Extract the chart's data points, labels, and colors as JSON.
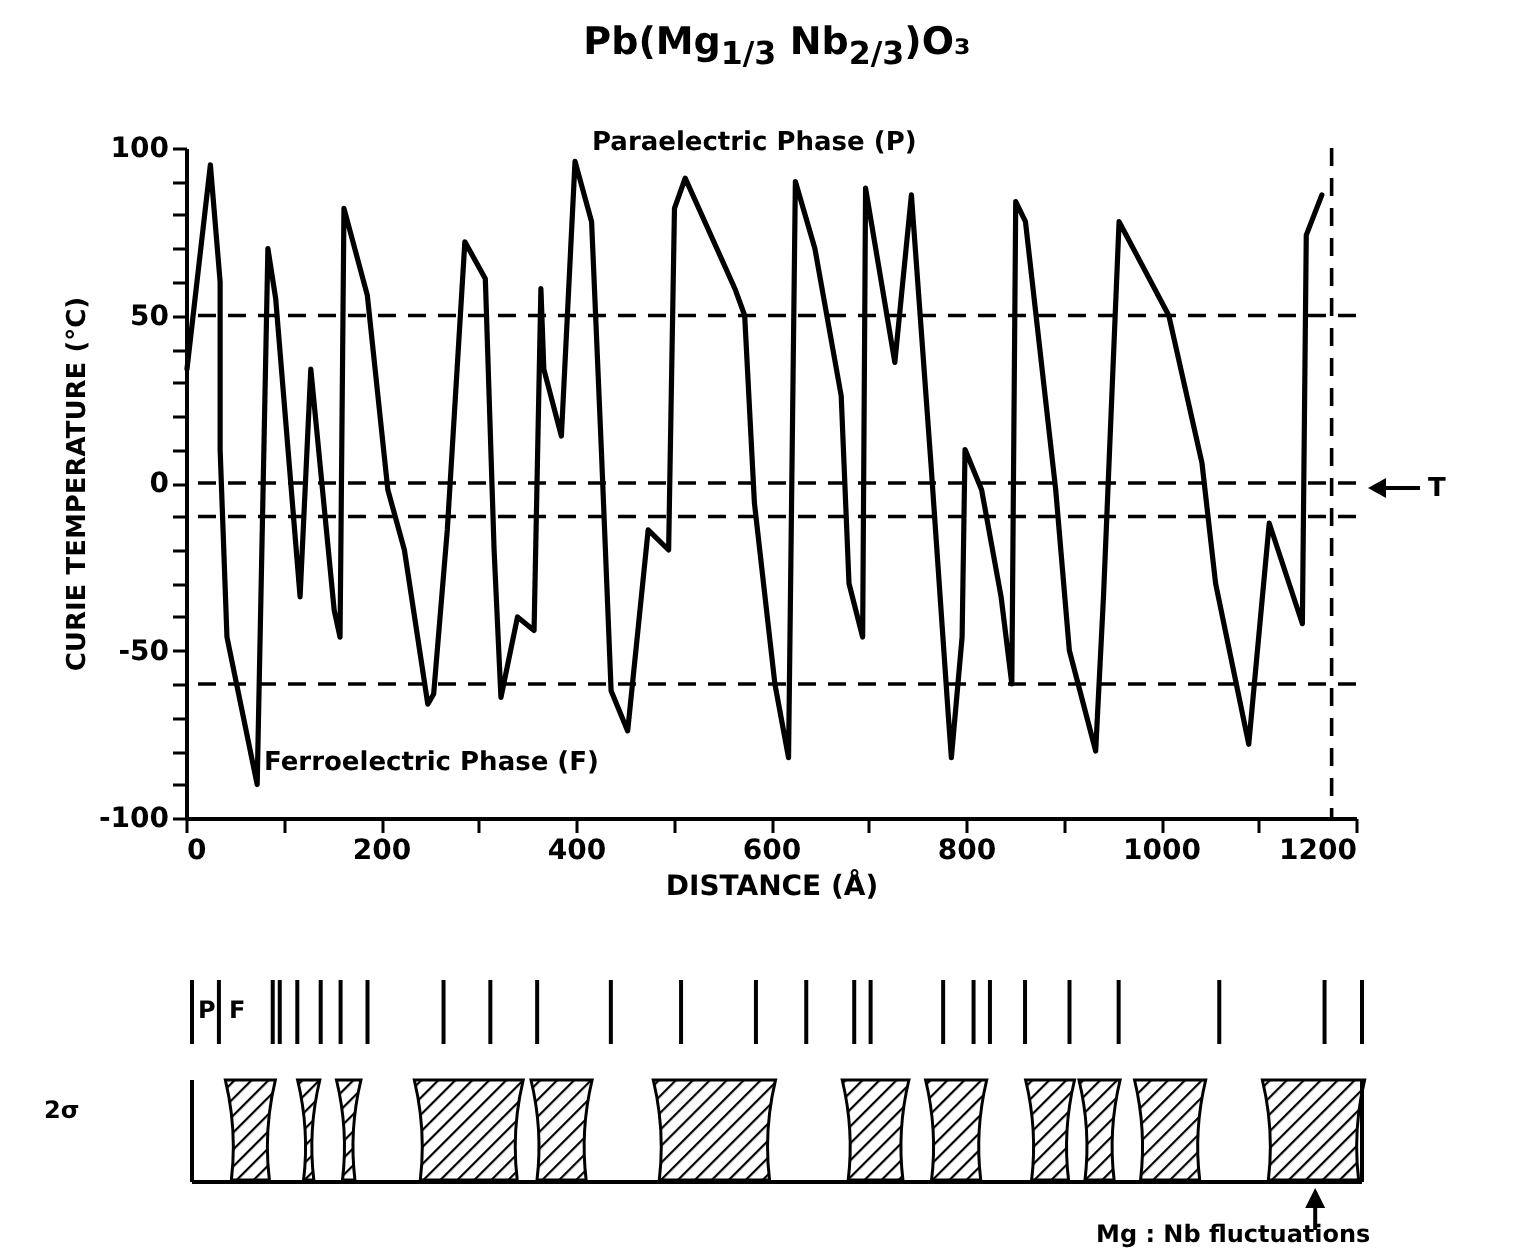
{
  "chart_data": {
    "type": "line",
    "title": "Pb(Mg$_{1/3}$ Nb$_{2/3}$)O₃",
    "xlabel": "DISTANCE (Å)",
    "ylabel": "CURIE TEMPERATURE (°C)",
    "x": [
      1,
      25,
      35,
      35,
      42,
      73,
      84,
      92,
      117,
      128,
      152,
      158,
      162,
      186,
      207,
      224,
      248,
      254,
      268,
      286,
      307,
      316,
      323,
      340,
      357,
      364,
      367,
      385,
      399,
      416,
      426,
      436,
      453,
      474,
      495,
      501,
      512,
      563,
      573,
      583,
      604,
      618,
      625,
      645,
      672,
      680,
      694,
      697,
      727,
      744,
      764,
      782,
      785,
      796,
      799,
      816,
      836,
      847,
      851,
      861,
      892,
      906,
      933,
      941,
      957,
      1008,
      1042,
      1056,
      1090,
      1111,
      1145,
      1149,
      1165
    ],
    "series": [
      {
        "color": "#000000",
        "values": [
          34,
          95,
          60,
          10,
          -46,
          -90,
          70,
          55,
          -34,
          34,
          -38,
          -46,
          82,
          56,
          -2,
          -20,
          -66,
          -63,
          -14,
          72,
          61,
          -20,
          -64,
          -40,
          -44,
          58,
          34,
          14,
          96,
          78,
          10,
          -62,
          -74,
          -14,
          -20,
          82,
          91,
          58,
          50,
          -6,
          -60,
          -82,
          90,
          70,
          26,
          -30,
          -46,
          88,
          36,
          86,
          6,
          -70,
          -82,
          -46,
          10,
          -2,
          -34,
          -60,
          84,
          78,
          -2,
          -50,
          -80,
          -34,
          78,
          50,
          6,
          -30,
          -78,
          -12,
          -42,
          74,
          86
        ]
      }
    ],
    "xlim": [
      0,
      1200
    ],
    "ylim": [
      -100,
      100
    ],
    "xticks": [
      0,
      {
        "value": 100,
        "label": null
      },
      200,
      {
        "value": 300,
        "label": null
      },
      400,
      {
        "value": 500,
        "label": null
      },
      600,
      {
        "value": 700,
        "label": null
      },
      800,
      {
        "value": 900,
        "label": null
      },
      1000,
      {
        "value": 1100,
        "label": null
      },
      1200
    ],
    "yticks": [
      -100,
      {
        "value": -90,
        "label": null
      },
      {
        "value": -80,
        "label": null
      },
      {
        "value": -70,
        "label": null
      },
      {
        "value": -60,
        "label": null
      },
      -50,
      {
        "value": -40,
        "label": null
      },
      {
        "value": -30,
        "label": null
      },
      {
        "value": -20,
        "label": null
      },
      {
        "value": -10,
        "label": null
      },
      0,
      {
        "value": 10,
        "label": null
      },
      {
        "value": 20,
        "label": null
      },
      {
        "value": 30,
        "label": null
      },
      {
        "value": 40,
        "label": null
      },
      50,
      {
        "value": 60,
        "label": null
      },
      {
        "value": 70,
        "label": null
      },
      {
        "value": 80,
        "label": null
      },
      {
        "value": 90,
        "label": null
      },
      100
    ],
    "ref_lines": [
      {
        "axis": "y",
        "value": 50,
        "line_style": "dashed"
      },
      {
        "axis": "y",
        "value": 0,
        "line_style": "dashed"
      },
      {
        "axis": "y",
        "value": -10,
        "line_style": "dashed"
      },
      {
        "axis": "y",
        "value": -60,
        "line_style": "dashed"
      },
      {
        "axis": "x",
        "value": 1175,
        "line_style": "dashed"
      }
    ],
    "annotations": [
      "Paraelectric Phase (P)",
      "Ferroelectric Phase (F)",
      "T",
      "P",
      "F",
      "2σ",
      "Mg : Nb fluctuations"
    ],
    "grid": false,
    "marker": "none",
    "line_style": "solid"
  }
}
